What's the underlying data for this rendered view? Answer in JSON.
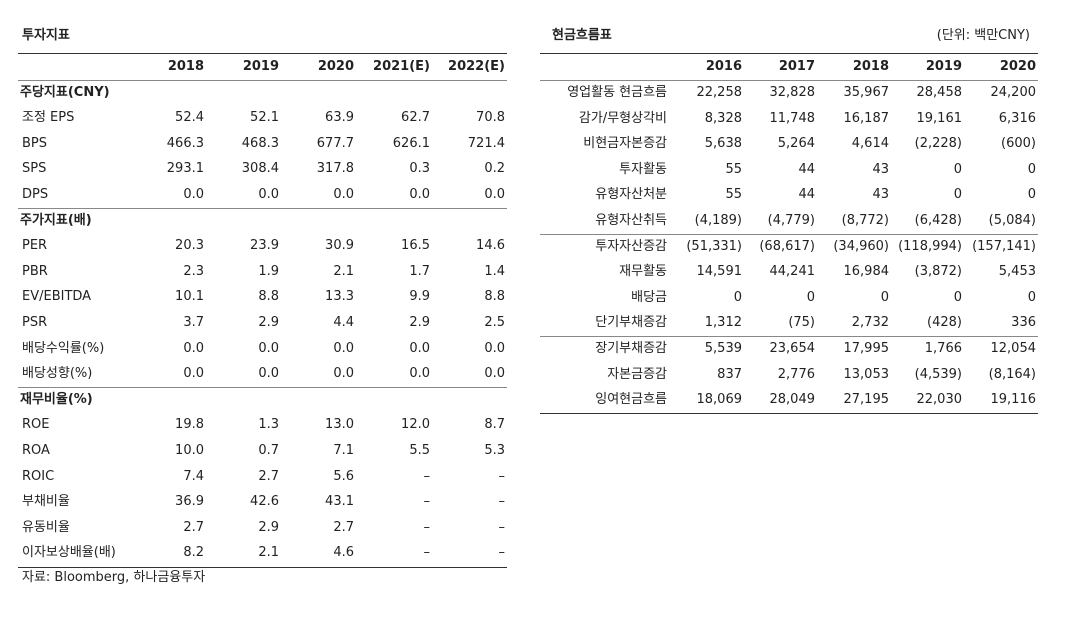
{
  "left": {
    "title": "투자지표",
    "columns": [
      "2018",
      "2019",
      "2020",
      "2021(E)",
      "2022(E)"
    ],
    "sections": [
      {
        "header": "주당지표(CNY)",
        "rows": [
          [
            "조정 EPS",
            "52.4",
            "52.1",
            "63.9",
            "62.7",
            "70.8"
          ],
          [
            "BPS",
            "466.3",
            "468.3",
            "677.7",
            "626.1",
            "721.4"
          ],
          [
            "SPS",
            "293.1",
            "308.4",
            "317.8",
            "0.3",
            "0.2"
          ],
          [
            "DPS",
            "0.0",
            "0.0",
            "0.0",
            "0.0",
            "0.0"
          ]
        ]
      },
      {
        "header": "주가지표(배)",
        "rows": [
          [
            "PER",
            "20.3",
            "23.9",
            "30.9",
            "16.5",
            "14.6"
          ],
          [
            "PBR",
            "2.3",
            "1.9",
            "2.1",
            "1.7",
            "1.4"
          ],
          [
            "EV/EBITDA",
            "10.1",
            "8.8",
            "13.3",
            "9.9",
            "8.8"
          ],
          [
            "PSR",
            "3.7",
            "2.9",
            "4.4",
            "2.9",
            "2.5"
          ],
          [
            "배당수익률(%)",
            "0.0",
            "0.0",
            "0.0",
            "0.0",
            "0.0"
          ],
          [
            "배당성향(%)",
            "0.0",
            "0.0",
            "0.0",
            "0.0",
            "0.0"
          ]
        ]
      },
      {
        "header": "재무비율(%)",
        "rows": [
          [
            "ROE",
            "19.8",
            "1.3",
            "13.0",
            "12.0",
            "8.7"
          ],
          [
            "ROA",
            "10.0",
            "0.7",
            "7.1",
            "5.5",
            "5.3"
          ],
          [
            "ROIC",
            "7.4",
            "2.7",
            "5.6",
            "–",
            "–"
          ],
          [
            "부채비율",
            "36.9",
            "42.6",
            "43.1",
            "–",
            "–"
          ],
          [
            "유동비율",
            "2.7",
            "2.9",
            "2.7",
            "–",
            "–"
          ],
          [
            "이자보상배율(배)",
            "8.2",
            "2.1",
            "4.6",
            "–",
            "–"
          ]
        ]
      }
    ]
  },
  "right": {
    "title": "현금흐름표",
    "unit": "(단위: 백만CNY)",
    "columns": [
      "2016",
      "2017",
      "2018",
      "2019",
      "2020"
    ],
    "rows": [
      [
        "영업활동 현금흐름",
        "22,258",
        "32,828",
        "35,967",
        "28,458",
        "24,200"
      ],
      [
        "감가/무형상각비",
        "8,328",
        "11,748",
        "16,187",
        "19,161",
        "6,316"
      ],
      [
        "비현금자본증감",
        "5,638",
        "5,264",
        "4,614",
        "(2,228)",
        "(600)"
      ],
      [
        "투자활동",
        "55",
        "44",
        "43",
        "0",
        "0"
      ],
      [
        "유형자산처분",
        "55",
        "44",
        "43",
        "0",
        "0"
      ],
      [
        "유형자산취득",
        "(4,189)",
        "(4,779)",
        "(8,772)",
        "(6,428)",
        "(5,084)"
      ],
      [
        "투자자산증감",
        "(51,331)",
        "(68,617)",
        "(34,960)",
        "(118,994)",
        "(157,141)"
      ],
      [
        "재무활동",
        "14,591",
        "44,241",
        "16,984",
        "(3,872)",
        "5,453"
      ],
      [
        "배당금",
        "0",
        "0",
        "0",
        "0",
        "0"
      ],
      [
        "단기부채증감",
        "1,312",
        "(75)",
        "2,732",
        "(428)",
        "336"
      ],
      [
        "장기부채증감",
        "5,539",
        "23,654",
        "17,995",
        "1,766",
        "12,054"
      ],
      [
        "자본금증감",
        "837",
        "2,776",
        "13,053",
        "(4,539)",
        "(8,164)"
      ],
      [
        "잉여현금흐름",
        "18,069",
        "28,049",
        "27,195",
        "22,030",
        "19,116"
      ]
    ]
  },
  "source": "자료: Bloomberg, 하나금융투자"
}
